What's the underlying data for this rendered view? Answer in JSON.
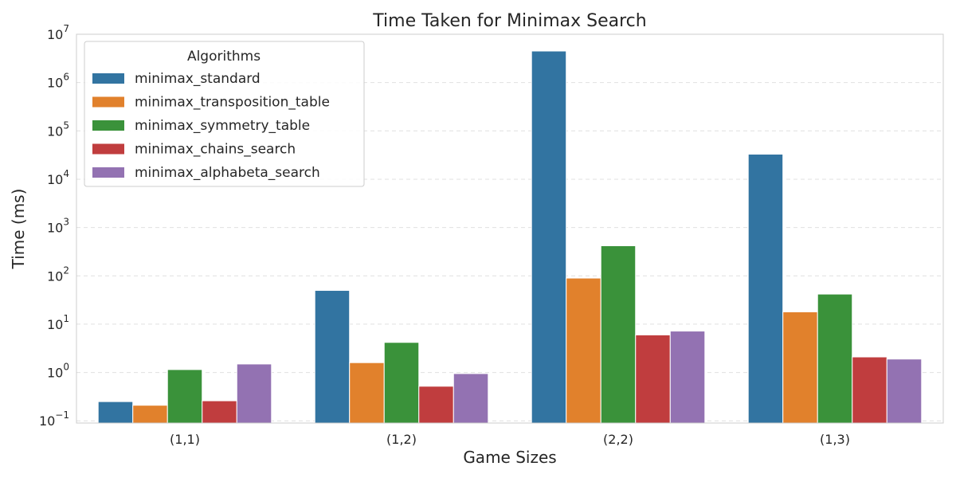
{
  "chart_data": {
    "type": "bar",
    "title": "Time Taken for Minimax Search",
    "xlabel": "Game Sizes",
    "ylabel": "Time (ms)",
    "yscale": "log",
    "ylim": [
      0.09,
      10000000
    ],
    "y_ticks": [
      {
        "value": 0.1,
        "base": "10",
        "exp": "−1"
      },
      {
        "value": 1,
        "base": "10",
        "exp": "0"
      },
      {
        "value": 10,
        "base": "10",
        "exp": "1"
      },
      {
        "value": 100,
        "base": "10",
        "exp": "2"
      },
      {
        "value": 1000,
        "base": "10",
        "exp": "3"
      },
      {
        "value": 10000,
        "base": "10",
        "exp": "4"
      },
      {
        "value": 100000,
        "base": "10",
        "exp": "5"
      },
      {
        "value": 1000000,
        "base": "10",
        "exp": "6"
      },
      {
        "value": 10000000,
        "base": "10",
        "exp": "7"
      }
    ],
    "grid": "y-dashed",
    "categories": [
      "(1,1)",
      "(1,2)",
      "(2,2)",
      "(1,3)"
    ],
    "legend": {
      "title": "Algorithms",
      "position": "top-left"
    },
    "series": [
      {
        "name": "minimax_standard",
        "color": "#3274a1",
        "values": [
          0.25,
          50,
          4500000,
          33000
        ]
      },
      {
        "name": "minimax_transposition_table",
        "color": "#e1812c",
        "values": [
          0.21,
          1.6,
          90,
          18
        ]
      },
      {
        "name": "minimax_symmetry_table",
        "color": "#3a923a",
        "values": [
          1.15,
          4.2,
          420,
          42
        ]
      },
      {
        "name": "minimax_chains_search",
        "color": "#c03d3e",
        "values": [
          0.26,
          0.52,
          6,
          2.1
        ]
      },
      {
        "name": "minimax_alphabeta_search",
        "color": "#9372b2",
        "values": [
          1.5,
          0.95,
          7.2,
          1.9
        ]
      }
    ]
  }
}
